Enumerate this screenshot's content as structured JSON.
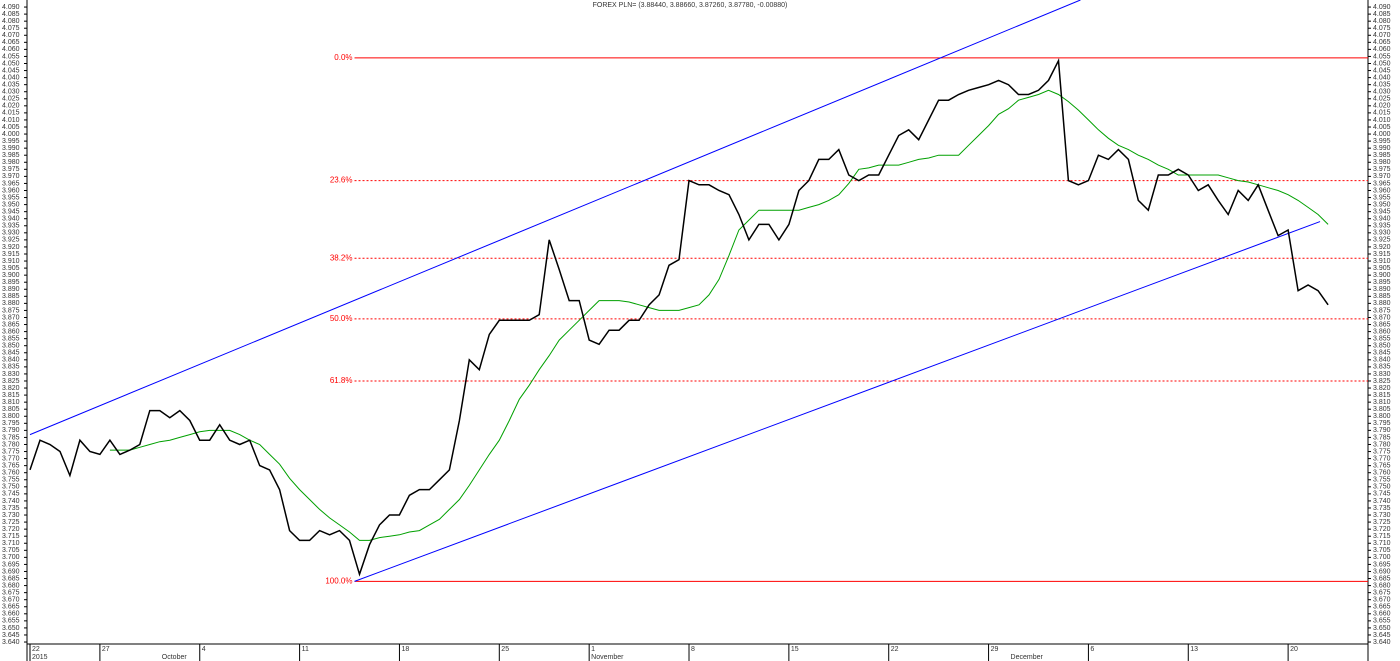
{
  "chart_data": {
    "type": "line",
    "title": "FOREX PLN= (3.88440, 3.88660, 3.87260, 3.87780, -0.00880)",
    "categories": [
      "22",
      null,
      null,
      null,
      null,
      null,
      null,
      "27",
      null,
      null,
      null,
      null,
      null,
      null,
      null,
      null,
      null,
      "4",
      null,
      null,
      null,
      null,
      null,
      null,
      null,
      null,
      null,
      "11",
      null,
      null,
      null,
      null,
      null,
      null,
      null,
      null,
      null,
      "18",
      null,
      null,
      null,
      null,
      null,
      null,
      null,
      null,
      null,
      "25",
      null,
      null,
      null,
      null,
      null,
      null,
      null,
      null,
      "1",
      null,
      null,
      null,
      null,
      null,
      null,
      null,
      null,
      null,
      "8",
      null,
      null,
      null,
      null,
      null,
      null,
      null,
      null,
      null,
      "15",
      null,
      null,
      null,
      null,
      null,
      null,
      null,
      null,
      null,
      "22",
      null,
      null,
      null,
      null,
      null,
      null,
      null,
      null,
      null,
      "29",
      null,
      null,
      null,
      null,
      null,
      null,
      null,
      null,
      null,
      "6",
      null,
      null,
      null,
      null,
      null,
      null,
      null,
      null,
      null,
      "13",
      null,
      null,
      null,
      null,
      null,
      null,
      null,
      null,
      null,
      "20",
      null,
      null,
      null,
      null
    ],
    "period_labels": [
      "2015",
      null,
      null,
      null,
      null,
      null,
      null,
      null,
      null,
      null,
      null,
      null,
      null,
      "October",
      null,
      null,
      null,
      null,
      null,
      null,
      null,
      null,
      null,
      null,
      null,
      null,
      null,
      null,
      null,
      null,
      null,
      null,
      null,
      null,
      null,
      null,
      null,
      null,
      null,
      null,
      null,
      null,
      null,
      null,
      null,
      null,
      null,
      null,
      null,
      null,
      null,
      null,
      null,
      null,
      null,
      null,
      "November",
      null,
      null,
      null,
      null,
      null,
      null,
      null,
      null,
      null,
      null,
      null,
      null,
      null,
      null,
      null,
      null,
      null,
      null,
      null,
      null,
      null,
      null,
      null,
      null,
      null,
      null,
      null,
      null,
      null,
      null,
      null,
      null,
      null,
      null,
      null,
      null,
      null,
      null,
      null,
      null,
      null,
      "December",
      null,
      null,
      null,
      null,
      null,
      null,
      null,
      null,
      null,
      null,
      null,
      null,
      null,
      null,
      null,
      null,
      null,
      null,
      null,
      null,
      null,
      null,
      null,
      null,
      null,
      null,
      null,
      null,
      null,
      null,
      null,
      null
    ],
    "series": [
      {
        "color": "#000000",
        "values": [
          3.762,
          3.783,
          3.78,
          3.775,
          3.758,
          3.783,
          3.775,
          3.773,
          3.783,
          3.773,
          3.776,
          3.78,
          3.804,
          3.804,
          3.799,
          3.804,
          3.797,
          3.783,
          3.783,
          3.794,
          3.783,
          3.78,
          3.783,
          3.765,
          3.762,
          3.748,
          3.719,
          3.712,
          3.712,
          3.719,
          3.716,
          3.719,
          3.712,
          3.688,
          3.709,
          3.723,
          3.73,
          3.73,
          3.744,
          3.748,
          3.748,
          3.755,
          3.762,
          3.797,
          3.84,
          3.833,
          3.858,
          3.868,
          3.868,
          3.868,
          3.868,
          3.872,
          3.925,
          3.904,
          3.882,
          3.882,
          3.854,
          3.851,
          3.861,
          3.861,
          3.868,
          3.868,
          3.879,
          3.886,
          3.907,
          3.911,
          3.967,
          3.964,
          3.964,
          3.96,
          3.957,
          3.943,
          3.925,
          3.936,
          3.936,
          3.925,
          3.936,
          3.96,
          3.967,
          3.982,
          3.982,
          3.989,
          3.971,
          3.967,
          3.971,
          3.971,
          3.985,
          3.999,
          4.003,
          3.996,
          4.01,
          4.024,
          4.024,
          4.028,
          4.031,
          4.033,
          4.035,
          4.038,
          4.035,
          4.028,
          4.028,
          4.031,
          4.038,
          4.052,
          3.967,
          3.964,
          3.967,
          3.985,
          3.982,
          3.989,
          3.982,
          3.953,
          3.946,
          3.971,
          3.971,
          3.975,
          3.971,
          3.96,
          3.964,
          3.953,
          3.943,
          3.96,
          3.953,
          3.964,
          3.946,
          3.928,
          3.932,
          3.889,
          3.893,
          3.889,
          3.879
        ]
      },
      {
        "color": "#00a000",
        "values": [
          null,
          null,
          null,
          null,
          null,
          null,
          null,
          null,
          3.776,
          3.776,
          3.776,
          3.778,
          3.78,
          3.782,
          3.783,
          3.785,
          3.787,
          3.789,
          3.79,
          3.79,
          3.79,
          3.787,
          3.783,
          3.78,
          3.773,
          3.766,
          3.756,
          3.748,
          3.741,
          3.734,
          3.728,
          3.723,
          3.718,
          3.712,
          3.712,
          3.714,
          3.715,
          3.716,
          3.718,
          3.719,
          3.723,
          3.727,
          3.734,
          3.741,
          3.751,
          3.762,
          3.773,
          3.783,
          3.797,
          3.812,
          3.822,
          3.833,
          3.843,
          3.854,
          3.861,
          3.868,
          3.875,
          3.882,
          3.882,
          3.882,
          3.881,
          3.879,
          3.877,
          3.875,
          3.875,
          3.875,
          3.877,
          3.879,
          3.886,
          3.897,
          3.914,
          3.932,
          3.939,
          3.946,
          3.946,
          3.946,
          3.946,
          3.946,
          3.948,
          3.95,
          3.953,
          3.957,
          3.965,
          3.975,
          3.976,
          3.978,
          3.978,
          3.978,
          3.98,
          3.982,
          3.983,
          3.985,
          3.985,
          3.985,
          3.992,
          3.999,
          4.006,
          4.014,
          4.018,
          4.024,
          4.026,
          4.028,
          4.031,
          4.028,
          4.023,
          4.017,
          4.01,
          4.003,
          3.997,
          3.992,
          3.989,
          3.985,
          3.982,
          3.978,
          3.975,
          3.971,
          3.971,
          3.971,
          3.971,
          3.971,
          3.969,
          3.967,
          3.966,
          3.964,
          3.962,
          3.96,
          3.957,
          3.953,
          3.948,
          3.943,
          3.936
        ]
      }
    ],
    "trendlines": [
      {
        "color": "#0000ff",
        "x": [
          0,
          105.2
        ],
        "values": [
          3.787,
          4.095
        ]
      },
      {
        "color": "#0000ff",
        "x": [
          32.5,
          129.2
        ],
        "values": [
          3.683,
          3.938
        ]
      }
    ],
    "fib_levels": {
      "color": "#ff0000",
      "x_start": 32.5,
      "levels": [
        {
          "value": 4.054,
          "label": "0.0%",
          "dashed": false
        },
        {
          "value": 3.967,
          "label": "23.6%",
          "dashed": true
        },
        {
          "value": 3.912,
          "label": "38.2%",
          "dashed": true
        },
        {
          "value": 3.869,
          "label": "50.0%",
          "dashed": true
        },
        {
          "value": 3.825,
          "label": "61.8%",
          "dashed": true
        },
        {
          "value": 3.683,
          "label": "100.0%",
          "dashed": false
        }
      ]
    },
    "ylim": [
      3.6386,
      4.095
    ],
    "yticks": [
      {
        "value": 3.64,
        "label": "3.640"
      },
      3.645,
      {
        "value": 3.65,
        "label": "3.650"
      },
      3.655,
      {
        "value": 3.66,
        "label": "3.660"
      },
      3.665,
      {
        "value": 3.67,
        "label": "3.670"
      },
      3.675,
      {
        "value": 3.68,
        "label": "3.680"
      },
      3.685,
      {
        "value": 3.69,
        "label": "3.690"
      },
      3.695,
      {
        "value": 3.7,
        "label": "3.700"
      },
      3.705,
      {
        "value": 3.71,
        "label": "3.710"
      },
      3.715,
      {
        "value": 3.72,
        "label": "3.720"
      },
      3.725,
      {
        "value": 3.73,
        "label": "3.730"
      },
      3.735,
      {
        "value": 3.74,
        "label": "3.740"
      },
      3.745,
      {
        "value": 3.75,
        "label": "3.750"
      },
      3.755,
      {
        "value": 3.76,
        "label": "3.760"
      },
      3.765,
      {
        "value": 3.77,
        "label": "3.770"
      },
      3.775,
      {
        "value": 3.78,
        "label": "3.780"
      },
      3.785,
      {
        "value": 3.79,
        "label": "3.790"
      },
      3.795,
      {
        "value": 3.8,
        "label": "3.800"
      },
      3.805,
      {
        "value": 3.81,
        "label": "3.810"
      },
      3.815,
      {
        "value": 3.82,
        "label": "3.820"
      },
      3.825,
      {
        "value": 3.83,
        "label": "3.830"
      },
      3.835,
      {
        "value": 3.84,
        "label": "3.840"
      },
      3.845,
      {
        "value": 3.85,
        "label": "3.850"
      },
      3.855,
      {
        "value": 3.86,
        "label": "3.860"
      },
      3.865,
      {
        "value": 3.87,
        "label": "3.870"
      },
      3.875,
      {
        "value": 3.88,
        "label": "3.880"
      },
      3.885,
      {
        "value": 3.89,
        "label": "3.890"
      },
      3.895,
      {
        "value": 3.9,
        "label": "3.900"
      },
      3.905,
      {
        "value": 3.91,
        "label": "3.910"
      },
      3.915,
      {
        "value": 3.92,
        "label": "3.920"
      },
      3.925,
      {
        "value": 3.93,
        "label": "3.930"
      },
      3.935,
      {
        "value": 3.94,
        "label": "3.940"
      },
      3.945,
      {
        "value": 3.95,
        "label": "3.950"
      },
      3.955,
      {
        "value": 3.96,
        "label": "3.960"
      },
      3.965,
      {
        "value": 3.97,
        "label": "3.970"
      },
      3.975,
      {
        "value": 3.98,
        "label": "3.980"
      },
      3.985,
      {
        "value": 3.99,
        "label": "3.990"
      },
      3.995,
      {
        "value": 4,
        "label": "4.000"
      },
      4.005,
      {
        "value": 4.01,
        "label": "4.010"
      },
      4.015,
      {
        "value": 4.02,
        "label": "4.020"
      },
      4.025,
      {
        "value": 4.03,
        "label": "4.030"
      },
      4.035,
      {
        "value": 4.04,
        "label": "4.040"
      },
      4.045,
      {
        "value": 4.05,
        "label": "4.050"
      },
      4.055,
      {
        "value": 4.06,
        "label": "4.060"
      },
      4.065,
      {
        "value": 4.07,
        "label": "4.070"
      },
      4.075,
      {
        "value": 4.08,
        "label": "4.080"
      },
      4.085,
      {
        "value": 4.09,
        "label": "4.090"
      }
    ]
  }
}
